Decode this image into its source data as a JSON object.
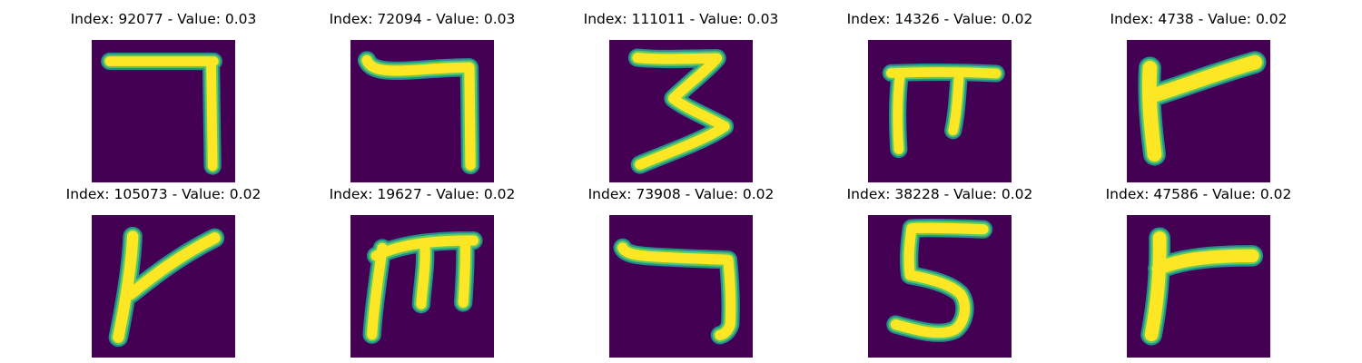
{
  "colors": {
    "background": "#440154",
    "edge": "#21918c",
    "mid": "#5ec962",
    "stroke": "#fde725"
  },
  "images": [
    {
      "index": "92077",
      "value": "0.03",
      "title": "Index: 92077 - Value: 0.03"
    },
    {
      "index": "72094",
      "value": "0.03",
      "title": "Index: 72094 - Value: 0.03"
    },
    {
      "index": "111011",
      "value": "0.03",
      "title": "Index: 111011 - Value: 0.03"
    },
    {
      "index": "14326",
      "value": "0.02",
      "title": "Index: 14326 - Value: 0.02"
    },
    {
      "index": "4738",
      "value": "0.02",
      "title": "Index: 4738 - Value: 0.02"
    },
    {
      "index": "105073",
      "value": "0.02",
      "title": "Index: 105073 - Value: 0.02"
    },
    {
      "index": "19627",
      "value": "0.02",
      "title": "Index: 19627 - Value: 0.02"
    },
    {
      "index": "73908",
      "value": "0.02",
      "title": "Index: 73908 - Value: 0.02"
    },
    {
      "index": "38228",
      "value": "0.02",
      "title": "Index: 38228 - Value: 0.02"
    },
    {
      "index": "47586",
      "value": "0.02",
      "title": "Index: 47586 - Value: 0.02"
    }
  ]
}
